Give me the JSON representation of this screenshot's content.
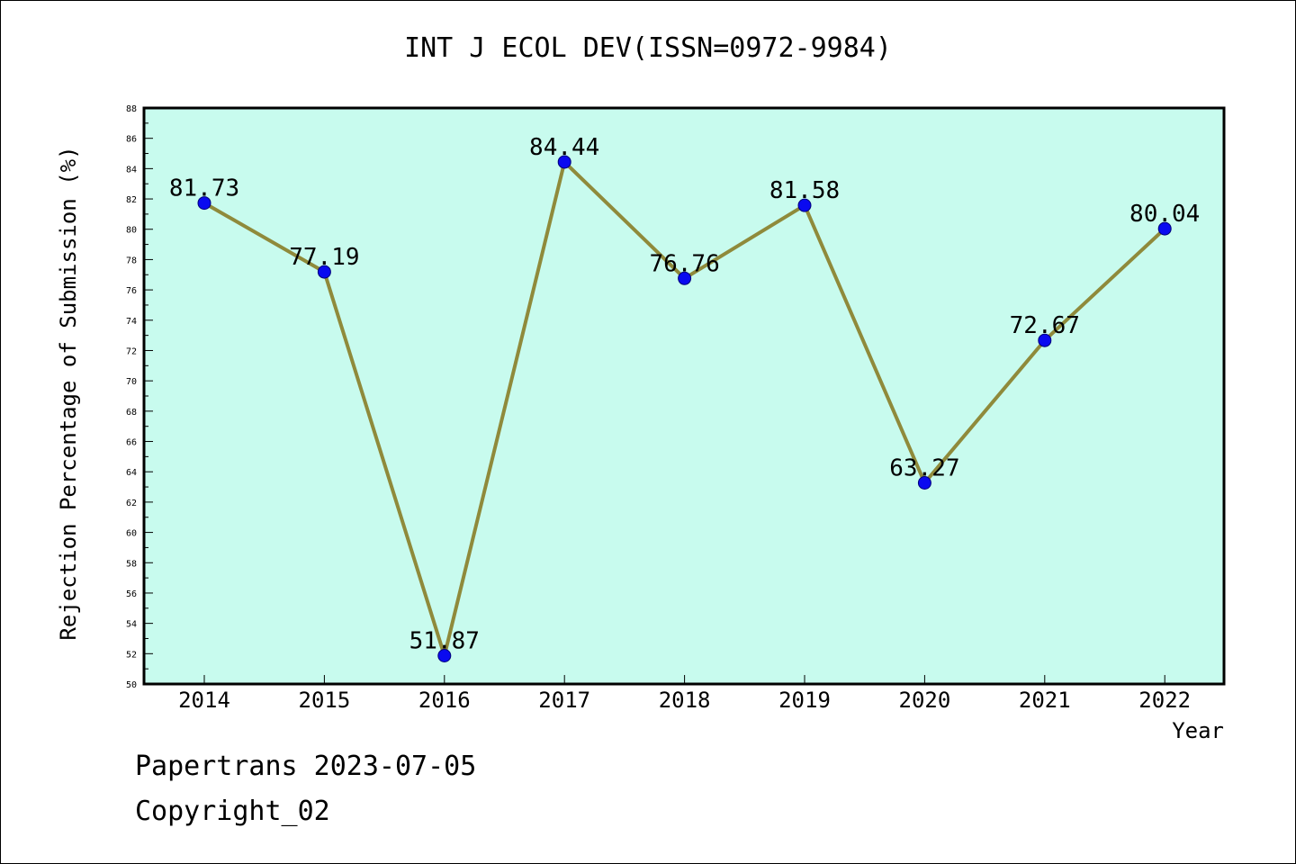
{
  "footer": {
    "line1": "Papertrans 2023-07-05",
    "line2": "Copyright_02"
  },
  "colors": {
    "plot_background": "#c8fbee",
    "line": "#8f8a3b",
    "marker": "#0a0af0"
  },
  "chart_data": {
    "type": "line",
    "title": "INT J ECOL DEV(ISSN=0972-9984)",
    "xlabel": "Year",
    "ylabel": "Rejection Percentage of Submission (%)",
    "categories": [
      "2014",
      "2015",
      "2016",
      "2017",
      "2018",
      "2019",
      "2020",
      "2021",
      "2022"
    ],
    "series": [
      {
        "values": [
          81.73,
          77.19,
          51.87,
          84.44,
          76.76,
          81.58,
          63.27,
          72.67,
          80.04
        ]
      }
    ],
    "data_labels": [
      "81.73",
      "77.19",
      "51.87",
      "84.44",
      "76.76",
      "81.58",
      "63.27",
      "72.67",
      "80.04"
    ],
    "ylim": [
      50,
      88
    ],
    "yticks": [
      50,
      52,
      54,
      56,
      58,
      60,
      62,
      64,
      66,
      68,
      70,
      72,
      74,
      76,
      78,
      80,
      82,
      84,
      86,
      88
    ],
    "grid": false,
    "legend": "none"
  }
}
